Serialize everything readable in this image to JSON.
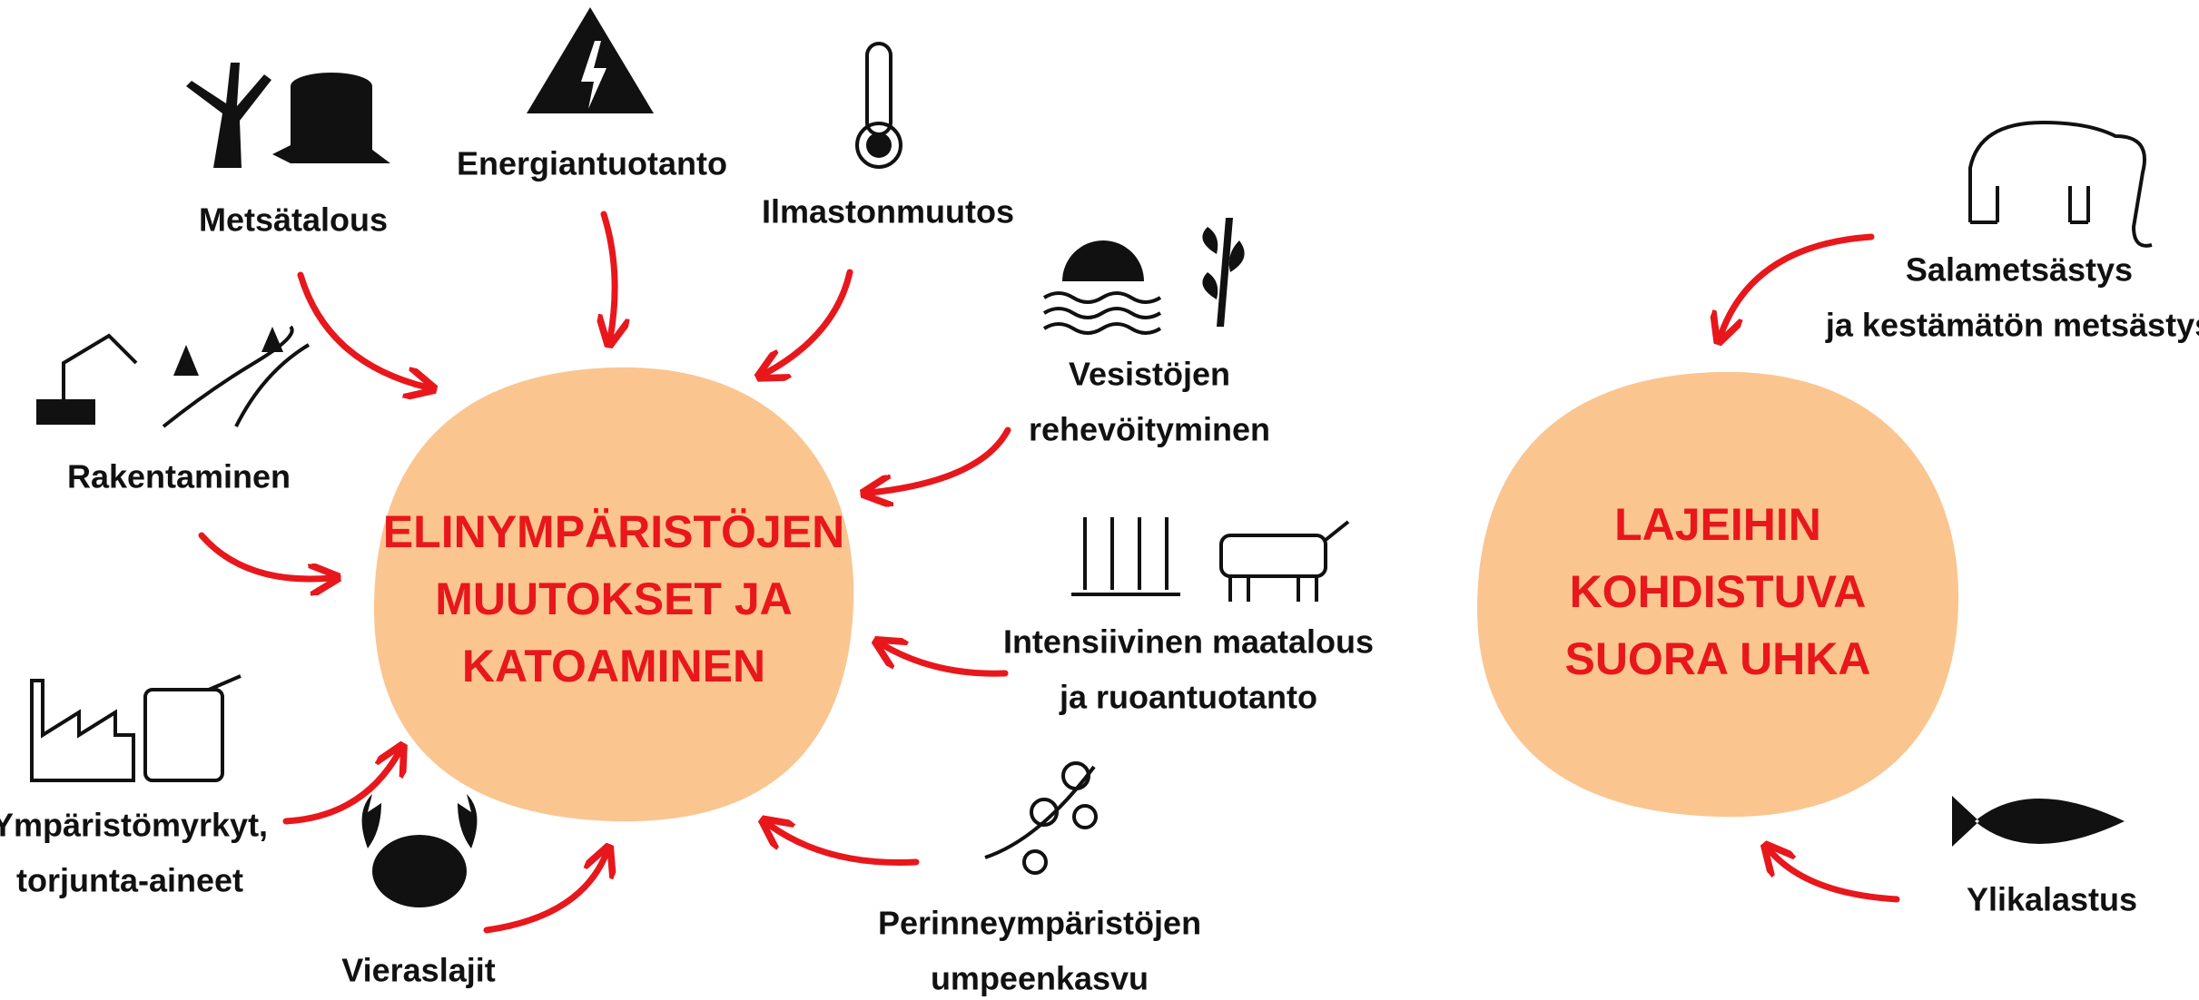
{
  "hubs": [
    {
      "label": [
        "ELINYMPÄRISTÖJEN",
        "MUUTOKSET JA",
        "KATOAMINEN"
      ]
    },
    {
      "label": [
        "LAJEIHIN",
        "KOHDISTUVA",
        "SUORA UHKA"
      ]
    }
  ],
  "factors": [
    {
      "label": [
        "Metsätalous"
      ]
    },
    {
      "label": [
        "Energiantuotanto"
      ]
    },
    {
      "label": [
        "Ilmastonmuutos"
      ]
    },
    {
      "label": [
        "Vesistöjen",
        "rehevöityminen"
      ]
    },
    {
      "label": [
        "Rakentaminen"
      ]
    },
    {
      "label": [
        "Intensiivinen maatalous",
        "ja ruoantuotanto"
      ]
    },
    {
      "label": [
        "Ympäristömyrkyt,",
        "torjunta-aineet"
      ]
    },
    {
      "label": [
        "Vieraslajit"
      ]
    },
    {
      "label": [
        "Perinneympäristöjen",
        "umpeenkasvu"
      ]
    },
    {
      "label": [
        "Salametsästys",
        "ja kestämätön metsästys"
      ]
    },
    {
      "label": [
        "Ylikalastus"
      ]
    }
  ]
}
